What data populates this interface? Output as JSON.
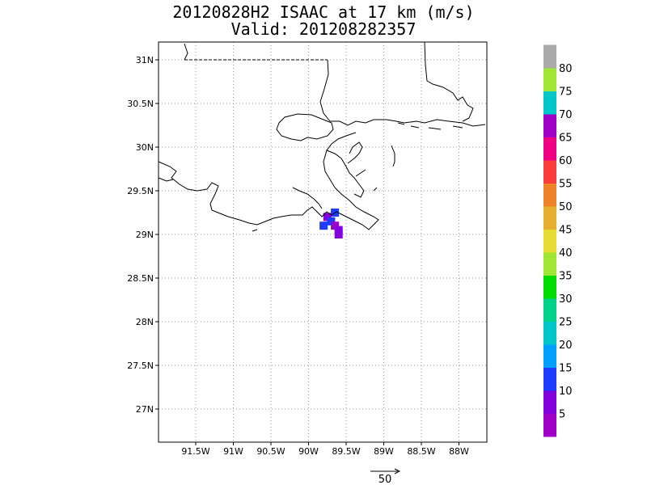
{
  "title": {
    "line1": "20120828H2 ISAAC at 17 km (m/s)",
    "line2": "Valid: 201208282357"
  },
  "map": {
    "lat_labels": [
      "31N",
      "30.5N",
      "30N",
      "29.5N",
      "29N",
      "28.5N",
      "28N",
      "27.5N",
      "27N"
    ],
    "lon_labels": [
      "91.5W",
      "91W",
      "90.5W",
      "90W",
      "89.5W",
      "89W",
      "88.5W",
      "88W"
    ],
    "lat_values": [
      31,
      30.5,
      30,
      29.5,
      29,
      28.5,
      28,
      27.5,
      27
    ],
    "lon_values": [
      -91.5,
      -91,
      -90.5,
      -90,
      -89.5,
      -89,
      -88.5,
      -88
    ],
    "grid_style": "dotted"
  },
  "colorbar": {
    "labels": [
      "5",
      "10",
      "15",
      "20",
      "25",
      "30",
      "35",
      "40",
      "45",
      "50",
      "55",
      "60",
      "65",
      "70",
      "75",
      "80"
    ],
    "colors": [
      "#a000c8",
      "#8200dc",
      "#1e3cff",
      "#00a0ff",
      "#00c8c8",
      "#00d28c",
      "#00dc00",
      "#a0e632",
      "#e6dc32",
      "#e6af2d",
      "#f08228",
      "#fa3c3c",
      "#f00082",
      "#a000c8",
      "#00c8c8",
      "#a0e632",
      "#aaaaaa"
    ]
  },
  "vector_legend": {
    "label": "50"
  },
  "data_cells": [
    {
      "lat": 29.25,
      "lon": -89.65,
      "color": "#1e3cff"
    },
    {
      "lat": 29.2,
      "lon": -89.75,
      "color": "#8200dc"
    },
    {
      "lat": 29.15,
      "lon": -89.7,
      "color": "#1e3cff"
    },
    {
      "lat": 29.1,
      "lon": -89.8,
      "color": "#1e3cff"
    },
    {
      "lat": 29.1,
      "lon": -89.65,
      "color": "#a000c8"
    },
    {
      "lat": 29.05,
      "lon": -89.6,
      "color": "#8200dc"
    },
    {
      "lat": 29.0,
      "lon": -89.6,
      "color": "#8200dc"
    }
  ]
}
